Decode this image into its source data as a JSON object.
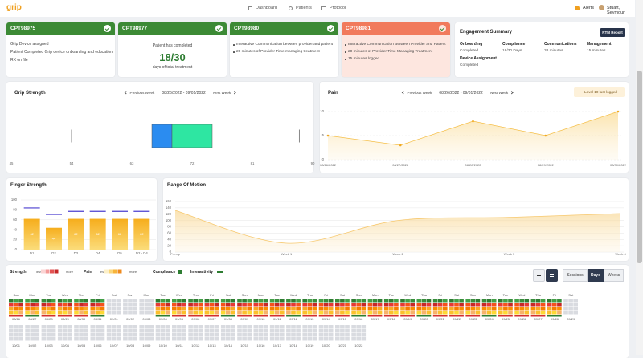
{
  "header": {
    "logo": "grip",
    "nav": [
      "Dashboard",
      "Patients",
      "Protocol"
    ],
    "alerts": "Alerts",
    "user": "Stuart, Seymour"
  },
  "cards": [
    {
      "code": "CPT98975",
      "lines": [
        "Grip Device assigned",
        "Patient Completed Grip device onboarding and education.",
        "RX on file"
      ]
    },
    {
      "code": "CPT98977",
      "lead": "Patient has completed",
      "big": "18/30",
      "sub": "days of total treatment"
    },
    {
      "code": "CPT98980",
      "bullets": [
        "Interactive Communication between provider and patient",
        "20 minutes of Provider Time managing treatment"
      ]
    },
    {
      "code": "CPT98981",
      "bullets": [
        "Interactive Communication Between Provider and Patient",
        "20 minutes of Provider Time Managing Treatment",
        "15 minutes logged"
      ]
    }
  ],
  "engagement": {
    "title": "Engagement Summary",
    "button": "RTM Report",
    "items": [
      {
        "label": "Onboarding",
        "value": "Completed"
      },
      {
        "label": "Compliance",
        "value": "18/30 Days"
      },
      {
        "label": "Communications",
        "value": "38 minutes"
      },
      {
        "label": "Management",
        "value": "15 minutes"
      },
      {
        "label": "Device Assignment",
        "value": "Completed"
      }
    ]
  },
  "week_nav": [
    {
      "prev": "Previous Week",
      "range": "08/26/2022 - 09/01/2022",
      "next": "Next Week"
    },
    {
      "prev": "Previous Week",
      "range": "08/26/2022 - 09/01/2022",
      "next": "Next Week"
    }
  ],
  "chart_data": [
    {
      "type": "box",
      "title": "Grip Strength",
      "min": 54,
      "q1": 66,
      "median": 69,
      "q3": 75,
      "max": 88,
      "colors": [
        "#2b8cf0",
        "#2ee6a2"
      ],
      "xlim": [
        45,
        90
      ],
      "xticks": [
        45,
        54,
        63,
        72,
        81,
        90
      ]
    },
    {
      "type": "line",
      "title": "Pain",
      "annotation": "Level 10 last logged",
      "x": [
        "08/26/2022",
        "08/27/2022",
        "08/28/2022",
        "08/29/2022",
        "08/30/2022"
      ],
      "values": [
        5,
        3,
        8,
        5,
        10
      ],
      "color": "#f5bf48",
      "ylim": [
        0,
        10
      ],
      "yticks": [
        0,
        5,
        10
      ]
    },
    {
      "type": "bar",
      "title": "Finger Strength",
      "categories": [
        "D1",
        "D2",
        "D3",
        "D4",
        "D5",
        "D2 - D4"
      ],
      "values": [
        62,
        44,
        62,
        62,
        62,
        62
      ],
      "targets": [
        84,
        71,
        77,
        77,
        77,
        77
      ],
      "color": "#f7b628",
      "target_color": "#4b3fcf",
      "ylim": [
        0,
        100
      ],
      "yticks": [
        0,
        20,
        40,
        60,
        80,
        100
      ]
    },
    {
      "type": "area",
      "title": "Range Of Motion",
      "categories": [
        "Pre-op",
        "Week 1",
        "Week 2",
        "Week 3",
        "Week 4"
      ],
      "values": [
        132,
        28,
        100,
        110,
        122
      ],
      "color": "#f7c970",
      "ylim": [
        0,
        160
      ],
      "yticks": [
        0,
        20,
        40,
        60,
        80,
        100,
        120,
        140,
        160
      ]
    }
  ],
  "calendar": {
    "legend": {
      "strength": "Strength",
      "pain": "Pain",
      "less": "less",
      "more": "more",
      "compliance": "Compliance",
      "interactivity": "Interactivity"
    },
    "views": [
      "Sessions",
      "Days",
      "Weeks"
    ],
    "active_view": 1,
    "weeks": [
      {
        "days": [
          "Sun",
          "Mon",
          "Tue",
          "Wed",
          "Thu",
          "Fri",
          "Sat",
          "Sun",
          "Mon",
          "Tue",
          "Wed",
          "Thu",
          "Fri",
          "Sat",
          "Sun",
          "Mon",
          "Tue",
          "Wed",
          "Thu",
          "Fri",
          "Sat",
          "Sun",
          "Mon",
          "Tue",
          "Wed",
          "Thu",
          "Fri",
          "Sat",
          "Sun",
          "Mon",
          "Tue",
          "Wed",
          "Thu",
          "Fri",
          "Sat"
        ],
        "dates": [
          "08/26",
          "08/27",
          "08/28",
          "08/29",
          "08/30",
          "08/31",
          "09/01",
          "09/02",
          "09/03",
          "09/04",
          "09/05",
          "09/06",
          "09/07",
          "09/08",
          "09/09",
          "09/10",
          "09/11",
          "09/12",
          "09/13",
          "09/14",
          "09/15",
          "09/16",
          "09/17",
          "09/18",
          "09/19",
          "09/20",
          "09/21",
          "09/22",
          "09/23",
          "09/24",
          "09/25",
          "09/26",
          "09/27",
          "09/28",
          "09/29"
        ],
        "active": [
          true,
          true,
          true,
          true,
          true,
          true,
          false,
          false,
          false,
          true,
          true,
          true,
          true,
          true,
          true,
          true,
          true,
          true,
          true,
          true,
          true,
          true,
          true,
          true,
          true,
          true,
          true,
          true,
          true,
          true,
          true,
          true,
          true,
          true,
          false
        ]
      },
      {
        "dates": [
          "10/01",
          "10/02",
          "10/03",
          "10/04",
          "10/05",
          "10/06",
          "10/07",
          "10/08",
          "10/09",
          "10/10",
          "10/11",
          "10/12",
          "10/13",
          "10/14",
          "10/15",
          "10/16",
          "10/17",
          "10/18",
          "10/19",
          "10/20",
          "10/21",
          "10/22"
        ],
        "active": [
          false,
          false,
          false,
          false,
          false,
          false,
          false,
          false,
          false,
          false,
          false,
          false,
          false,
          false,
          false,
          false,
          false,
          false,
          false,
          false,
          false,
          false
        ]
      }
    ]
  }
}
